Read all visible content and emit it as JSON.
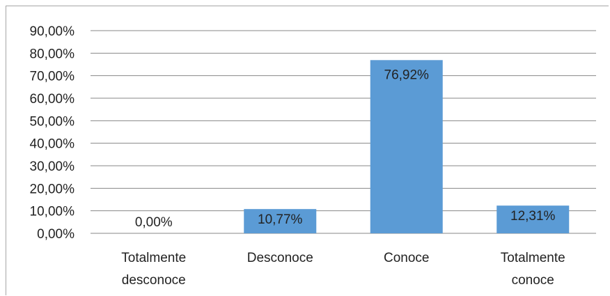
{
  "chart_data": {
    "type": "bar",
    "title": "",
    "xlabel": "",
    "ylabel": "",
    "categories": [
      [
        "Totalmente",
        "desconoce"
      ],
      [
        "Desconoce"
      ],
      [
        "Conoce"
      ],
      [
        "Totalmente",
        "conoce"
      ]
    ],
    "values": [
      0.0,
      10.77,
      76.92,
      12.31
    ],
    "data_labels": [
      "0,00%",
      "10,77%",
      "76,92%",
      "12,31%"
    ],
    "ylim": [
      0,
      90
    ],
    "y_ticks": [
      0,
      10,
      20,
      30,
      40,
      50,
      60,
      70,
      80,
      90
    ],
    "y_tick_labels": [
      "0,00%",
      "10,00%",
      "20,00%",
      "30,00%",
      "40,00%",
      "50,00%",
      "60,00%",
      "70,00%",
      "80,00%",
      "90,00%"
    ],
    "grid": true,
    "legend": "none",
    "bar_color": "#5b9bd5",
    "grid_color": "#878787"
  }
}
